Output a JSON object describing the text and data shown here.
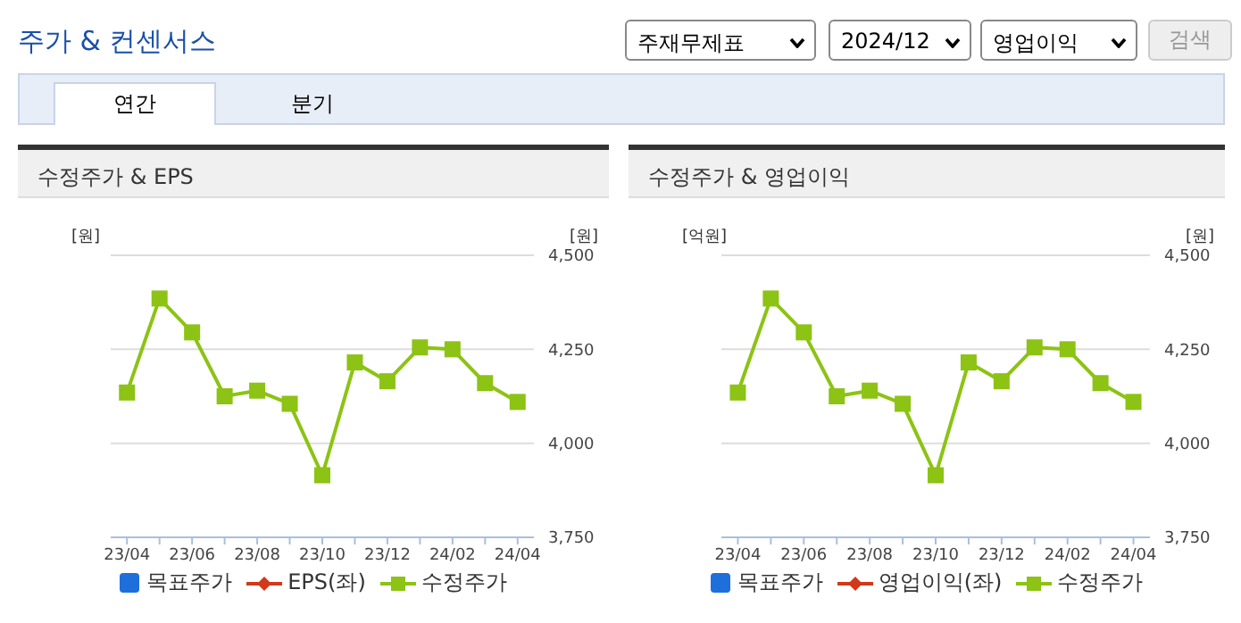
{
  "chart_data": [
    {
      "type": "other",
      "title": "주가 & 컨센서스",
      "annotations": [
        "주재무제표",
        "2024/12",
        "영업이익",
        "검색",
        "연간",
        "분기"
      ]
    },
    {
      "type": "line",
      "title": "수정주가 & EPS",
      "ylabel": "[원]",
      "y2label": "[원]",
      "categories": [
        "23/04",
        null,
        "23/06",
        null,
        "23/08",
        null,
        "23/10",
        null,
        "23/12",
        null,
        "24/02",
        null,
        "24/04"
      ],
      "y2lim": [
        3750,
        4500
      ],
      "y2ticks": [
        {
          "value": 3750,
          "label": "3,750"
        },
        {
          "value": 4000,
          "label": "4,000"
        },
        {
          "value": 4250,
          "label": "4,250"
        },
        {
          "value": 4500,
          "label": "4,500"
        }
      ],
      "grid": "y",
      "legend": "bottom",
      "series": [
        {
          "name": "목표주가",
          "type": "bar",
          "color": "#1e6fdc",
          "values": [
            null,
            null,
            null,
            null,
            null,
            null,
            null,
            null,
            null,
            null,
            null,
            null,
            null
          ]
        },
        {
          "name": "EPS(좌)",
          "type": "line",
          "color": "#d2381a",
          "marker": "diamond",
          "values": [
            null,
            null,
            null,
            null,
            null,
            null,
            null,
            null,
            null,
            null,
            null,
            null,
            null
          ]
        },
        {
          "name": "수정주가",
          "type": "line",
          "axis": "y2",
          "color": "#8cc314",
          "marker": "square",
          "values": [
            4135,
            4385,
            4295,
            4125,
            4140,
            4105,
            3915,
            4215,
            4165,
            4255,
            4250,
            4160,
            4110
          ]
        }
      ]
    },
    {
      "type": "line",
      "title": "수정주가 & 영업이익",
      "ylabel": "[억원]",
      "y2label": "[원]",
      "categories": [
        "23/04",
        null,
        "23/06",
        null,
        "23/08",
        null,
        "23/10",
        null,
        "23/12",
        null,
        "24/02",
        null,
        "24/04"
      ],
      "y2lim": [
        3750,
        4500
      ],
      "y2ticks": [
        {
          "value": 3750,
          "label": "3,750"
        },
        {
          "value": 4000,
          "label": "4,000"
        },
        {
          "value": 4250,
          "label": "4,250"
        },
        {
          "value": 4500,
          "label": "4,500"
        }
      ],
      "grid": "y",
      "legend": "bottom",
      "series": [
        {
          "name": "목표주가",
          "type": "bar",
          "color": "#1e6fdc",
          "values": [
            null,
            null,
            null,
            null,
            null,
            null,
            null,
            null,
            null,
            null,
            null,
            null,
            null
          ]
        },
        {
          "name": "영업이익(좌)",
          "type": "line",
          "color": "#d2381a",
          "marker": "diamond",
          "values": [
            null,
            null,
            null,
            null,
            null,
            null,
            null,
            null,
            null,
            null,
            null,
            null,
            null
          ]
        },
        {
          "name": "수정주가",
          "type": "line",
          "axis": "y2",
          "color": "#8cc314",
          "marker": "square",
          "values": [
            4135,
            4385,
            4295,
            4125,
            4140,
            4105,
            3915,
            4215,
            4165,
            4255,
            4250,
            4160,
            4110
          ]
        }
      ]
    }
  ]
}
